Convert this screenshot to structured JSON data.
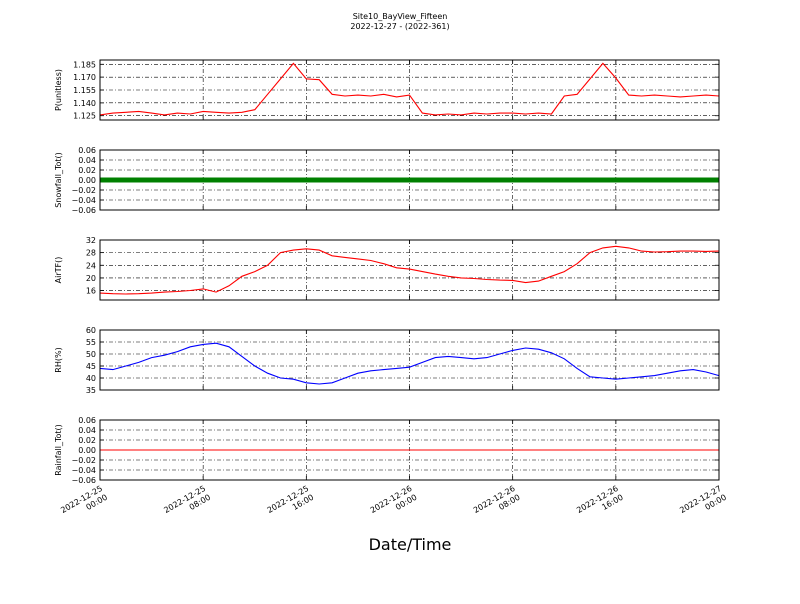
{
  "title": "Site10_BayView_Fifteen",
  "subtitle": "2022-12-27 - (2022-361)",
  "xlabel": "Date/Time",
  "x_ticks": [
    [
      "2022-12-25",
      "00:00"
    ],
    [
      "2022-12-25",
      "08:00"
    ],
    [
      "2022-12-25",
      "16:00"
    ],
    [
      "2022-12-26",
      "00:00"
    ],
    [
      "2022-12-26",
      "08:00"
    ],
    [
      "2022-12-26",
      "16:00"
    ],
    [
      "2022-12-27",
      "00:00"
    ]
  ],
  "chart_data": [
    {
      "type": "line",
      "ylabel": "P(unitless)",
      "color": "#ff0000",
      "x_range": [
        "2022-12-25 00:00",
        "2022-12-27 00:00"
      ],
      "ylim": [
        1.12,
        1.19
      ],
      "yticks": [
        "1.125",
        "1.140",
        "1.155",
        "1.170",
        "1.185"
      ],
      "grid": true,
      "x_hours": [
        0,
        1,
        2,
        3,
        4,
        5,
        6,
        7,
        8,
        9,
        10,
        11,
        12,
        13,
        14,
        15,
        16,
        17,
        18,
        19,
        20,
        21,
        22,
        23,
        24,
        25,
        26,
        27,
        28,
        29,
        30,
        31,
        32,
        33,
        34,
        35,
        36,
        37,
        38,
        39,
        40,
        41,
        42,
        43,
        44,
        45,
        46,
        47,
        48
      ],
      "y": [
        1.126,
        1.128,
        1.129,
        1.13,
        1.128,
        1.126,
        1.128,
        1.127,
        1.13,
        1.129,
        1.128,
        1.129,
        1.132,
        1.15,
        1.168,
        1.186,
        1.168,
        1.167,
        1.15,
        1.148,
        1.149,
        1.148,
        1.15,
        1.147,
        1.149,
        1.128,
        1.126,
        1.127,
        1.126,
        1.128,
        1.127,
        1.128,
        1.128,
        1.127,
        1.128,
        1.127,
        1.148,
        1.15,
        1.168,
        1.186,
        1.169,
        1.149,
        1.148,
        1.149,
        1.148,
        1.147,
        1.148,
        1.149,
        1.148
      ]
    },
    {
      "type": "scatter",
      "ylabel": "Snowfall_Tot()",
      "color": "#008000",
      "x_range": [
        "2022-12-25 00:00",
        "2022-12-27 00:00"
      ],
      "ylim": [
        -0.06,
        0.06
      ],
      "yticks": [
        "0.06",
        "0.04",
        "0.02",
        "0.00",
        "−0.02",
        "−0.04",
        "−0.06"
      ],
      "grid": true,
      "x_hours": [
        0,
        48
      ],
      "y": [
        0.0,
        0.0
      ]
    },
    {
      "type": "line",
      "ylabel": "AirTF()",
      "color": "#ff0000",
      "x_range": [
        "2022-12-25 00:00",
        "2022-12-27 00:00"
      ],
      "ylim": [
        13,
        32
      ],
      "yticks": [
        "16",
        "20",
        "24",
        "28",
        "32"
      ],
      "grid": true,
      "x_hours": [
        0,
        1,
        2,
        3,
        4,
        5,
        6,
        7,
        8,
        9,
        10,
        11,
        12,
        13,
        14,
        15,
        16,
        17,
        18,
        19,
        20,
        21,
        22,
        23,
        24,
        25,
        26,
        27,
        28,
        29,
        30,
        31,
        32,
        33,
        34,
        35,
        36,
        37,
        38,
        39,
        40,
        41,
        42,
        43,
        44,
        45,
        46,
        47,
        48
      ],
      "y": [
        15.2,
        15.0,
        14.9,
        15.0,
        15.2,
        15.5,
        15.7,
        16.0,
        16.5,
        15.5,
        17.5,
        20.5,
        22.0,
        24.0,
        28.0,
        28.8,
        29.2,
        28.8,
        27.0,
        26.5,
        26.0,
        25.5,
        24.5,
        23.2,
        22.8,
        22.0,
        21.2,
        20.5,
        20.0,
        19.8,
        19.5,
        19.3,
        19.2,
        18.5,
        19.0,
        20.5,
        22.0,
        24.5,
        28.0,
        29.5,
        30.0,
        29.5,
        28.5,
        28.2,
        28.3,
        28.5,
        28.5,
        28.4,
        28.5
      ]
    },
    {
      "type": "line",
      "ylabel": "RH(%)",
      "color": "#0000ff",
      "x_range": [
        "2022-12-25 00:00",
        "2022-12-27 00:00"
      ],
      "ylim": [
        35,
        60
      ],
      "yticks": [
        "35",
        "40",
        "45",
        "50",
        "55",
        "60"
      ],
      "grid": true,
      "x_hours": [
        0,
        1,
        2,
        3,
        4,
        5,
        6,
        7,
        8,
        9,
        10,
        11,
        12,
        13,
        14,
        15,
        16,
        17,
        18,
        19,
        20,
        21,
        22,
        23,
        24,
        25,
        26,
        27,
        28,
        29,
        30,
        31,
        32,
        33,
        34,
        35,
        36,
        37,
        38,
        39,
        40,
        41,
        42,
        43,
        44,
        45,
        46,
        47,
        48
      ],
      "y": [
        44,
        43.5,
        45,
        46.5,
        48.5,
        49.5,
        51,
        53,
        54,
        54.5,
        53,
        49,
        45,
        42,
        40,
        39.5,
        38,
        37.5,
        38,
        40,
        42,
        43,
        43.5,
        44,
        44.5,
        46.5,
        48.5,
        49,
        48.5,
        48,
        48.5,
        50,
        51.5,
        52.5,
        52,
        50.5,
        48,
        44,
        40.5,
        40,
        39.5,
        40,
        40.5,
        41,
        42,
        43,
        43.5,
        42.5,
        41
      ]
    },
    {
      "type": "line",
      "ylabel": "Rainfall_Tot()",
      "color": "#ff0000",
      "x_range": [
        "2022-12-25 00:00",
        "2022-12-27 00:00"
      ],
      "ylim": [
        -0.06,
        0.06
      ],
      "yticks": [
        "0.06",
        "0.04",
        "0.02",
        "0.00",
        "−0.02",
        "−0.04",
        "−0.06"
      ],
      "grid": true,
      "x_hours": [
        0,
        48
      ],
      "y": [
        0.0,
        0.0
      ]
    }
  ]
}
